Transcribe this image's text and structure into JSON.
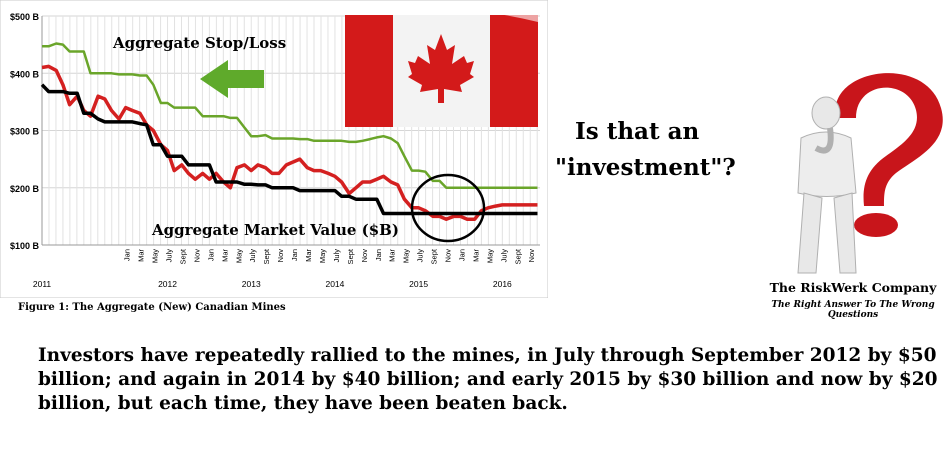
{
  "chart_data": {
    "type": "line",
    "title": "",
    "xlabel": "",
    "ylabel": "",
    "y_unit": "$B",
    "ylim": [
      100,
      500
    ],
    "yticks": [
      100,
      200,
      300,
      400,
      500
    ],
    "ytick_labels": [
      "$100 B",
      "$200 B",
      "$300 B",
      "$400 B",
      "$500 B"
    ],
    "xlim": [
      2011.0,
      2016.95
    ],
    "month_ticks": [
      "Jan",
      "Mar",
      "May",
      "July",
      "Sept",
      "Nov"
    ],
    "year_labels": [
      "2011",
      "2012",
      "2013",
      "2014",
      "2015",
      "2016"
    ],
    "grid": true,
    "colors": {
      "stop_loss": "#6aa52a",
      "red": "#d42020",
      "market_value": "#000000"
    },
    "series": [
      {
        "name": "Aggregate Stop/Loss",
        "x": [
          2011.0,
          2011.08,
          2011.17,
          2011.25,
          2011.33,
          2011.42,
          2011.5,
          2011.58,
          2011.67,
          2011.75,
          2011.83,
          2011.92,
          2012.0,
          2012.08,
          2012.17,
          2012.25,
          2012.33,
          2012.42,
          2012.5,
          2012.58,
          2012.67,
          2012.75,
          2012.83,
          2012.92,
          2013.0,
          2013.08,
          2013.17,
          2013.25,
          2013.33,
          2013.42,
          2013.5,
          2013.58,
          2013.67,
          2013.75,
          2013.83,
          2013.92,
          2014.0,
          2014.08,
          2014.17,
          2014.25,
          2014.33,
          2014.42,
          2014.5,
          2014.58,
          2014.67,
          2014.75,
          2014.83,
          2014.92,
          2015.0,
          2015.08,
          2015.17,
          2015.25,
          2015.33,
          2015.42,
          2015.5,
          2015.58,
          2015.67,
          2015.75,
          2015.83,
          2015.92,
          2016.0,
          2016.08,
          2016.17,
          2016.25,
          2016.33,
          2016.42,
          2016.5,
          2016.58,
          2016.67,
          2016.75,
          2016.83,
          2016.92
        ],
        "values": [
          447,
          447,
          452,
          450,
          438,
          438,
          438,
          400,
          400,
          400,
          400,
          398,
          398,
          398,
          396,
          396,
          380,
          348,
          348,
          340,
          340,
          340,
          340,
          325,
          325,
          325,
          325,
          322,
          322,
          305,
          290,
          290,
          292,
          286,
          286,
          286,
          286,
          285,
          285,
          282,
          282,
          282,
          282,
          282,
          280,
          280,
          282,
          285,
          288,
          290,
          286,
          278,
          255,
          230,
          230,
          228,
          212,
          212,
          200,
          200,
          200,
          200,
          200,
          200,
          200,
          200,
          200,
          200,
          200,
          200,
          200,
          200
        ]
      },
      {
        "name": "",
        "x": [
          2011.0,
          2011.08,
          2011.17,
          2011.25,
          2011.33,
          2011.42,
          2011.5,
          2011.58,
          2011.67,
          2011.75,
          2011.83,
          2011.92,
          2012.0,
          2012.08,
          2012.17,
          2012.25,
          2012.33,
          2012.42,
          2012.5,
          2012.58,
          2012.67,
          2012.75,
          2012.83,
          2012.92,
          2013.0,
          2013.08,
          2013.17,
          2013.25,
          2013.33,
          2013.42,
          2013.5,
          2013.58,
          2013.67,
          2013.75,
          2013.83,
          2013.92,
          2014.0,
          2014.08,
          2014.17,
          2014.25,
          2014.33,
          2014.42,
          2014.5,
          2014.58,
          2014.67,
          2014.75,
          2014.83,
          2014.92,
          2015.0,
          2015.08,
          2015.17,
          2015.25,
          2015.33,
          2015.42,
          2015.5,
          2015.58,
          2015.67,
          2015.75,
          2015.83,
          2015.92,
          2016.0,
          2016.08,
          2016.17,
          2016.25,
          2016.33,
          2016.42,
          2016.5,
          2016.58,
          2016.67,
          2016.75,
          2016.83,
          2016.92
        ],
        "values": [
          410,
          412,
          405,
          380,
          345,
          360,
          335,
          325,
          360,
          355,
          335,
          320,
          340,
          335,
          330,
          310,
          300,
          275,
          265,
          230,
          240,
          225,
          215,
          225,
          215,
          225,
          210,
          200,
          235,
          240,
          230,
          240,
          235,
          225,
          225,
          240,
          245,
          250,
          235,
          230,
          230,
          225,
          220,
          210,
          190,
          200,
          210,
          210,
          215,
          220,
          210,
          205,
          180,
          165,
          165,
          160,
          150,
          150,
          145,
          150,
          150,
          145,
          145,
          160,
          165,
          168,
          170,
          170,
          170,
          170,
          170,
          170
        ]
      },
      {
        "name": "Aggregate Market Value ($B)",
        "x": [
          2011.0,
          2011.08,
          2011.17,
          2011.25,
          2011.33,
          2011.42,
          2011.5,
          2011.58,
          2011.67,
          2011.75,
          2011.83,
          2011.92,
          2012.0,
          2012.08,
          2012.17,
          2012.25,
          2012.33,
          2012.42,
          2012.5,
          2012.58,
          2012.67,
          2012.75,
          2012.83,
          2012.92,
          2013.0,
          2013.08,
          2013.17,
          2013.25,
          2013.33,
          2013.42,
          2013.5,
          2013.58,
          2013.67,
          2013.75,
          2013.83,
          2013.92,
          2014.0,
          2014.08,
          2014.17,
          2014.25,
          2014.33,
          2014.42,
          2014.5,
          2014.58,
          2014.67,
          2014.75,
          2014.83,
          2014.92,
          2015.0,
          2015.08,
          2015.17,
          2015.25,
          2015.33,
          2015.42,
          2015.5,
          2015.58,
          2015.67,
          2015.75,
          2015.83,
          2015.92,
          2016.0,
          2016.08,
          2016.17,
          2016.25,
          2016.33,
          2016.42,
          2016.5,
          2016.58,
          2016.67,
          2016.75,
          2016.83,
          2016.92
        ],
        "values": [
          380,
          368,
          368,
          368,
          365,
          365,
          330,
          330,
          320,
          315,
          315,
          315,
          315,
          315,
          312,
          310,
          275,
          275,
          255,
          255,
          255,
          240,
          240,
          240,
          240,
          210,
          210,
          210,
          210,
          206,
          206,
          205,
          205,
          200,
          200,
          200,
          200,
          195,
          195,
          195,
          195,
          195,
          195,
          185,
          185,
          180,
          180,
          180,
          180,
          155,
          155,
          155,
          155,
          155,
          155,
          155,
          155,
          155,
          155,
          155,
          155,
          155,
          155,
          155,
          155,
          155,
          155,
          155,
          155,
          155,
          155,
          155
        ]
      }
    ],
    "annotations": [
      "Aggregate Stop/Loss",
      "Aggregate Market Value ($B)"
    ]
  },
  "caption": "Figure 1: The Aggregate (New) Canadian Mines",
  "question": {
    "line1": "Is that an",
    "line2": "\"investment\"?"
  },
  "logo": {
    "name": "The RiskWerk Company",
    "tagline": "The Right Answer To The Wrong Questions"
  },
  "body_text": "Investors have repeatedly rallied to the mines, in July through September 2012 by $50 billion; and again in 2014 by $40 billion; and early 2015 by $30 billion and now by $20 billion, but each time, they have been beaten back."
}
